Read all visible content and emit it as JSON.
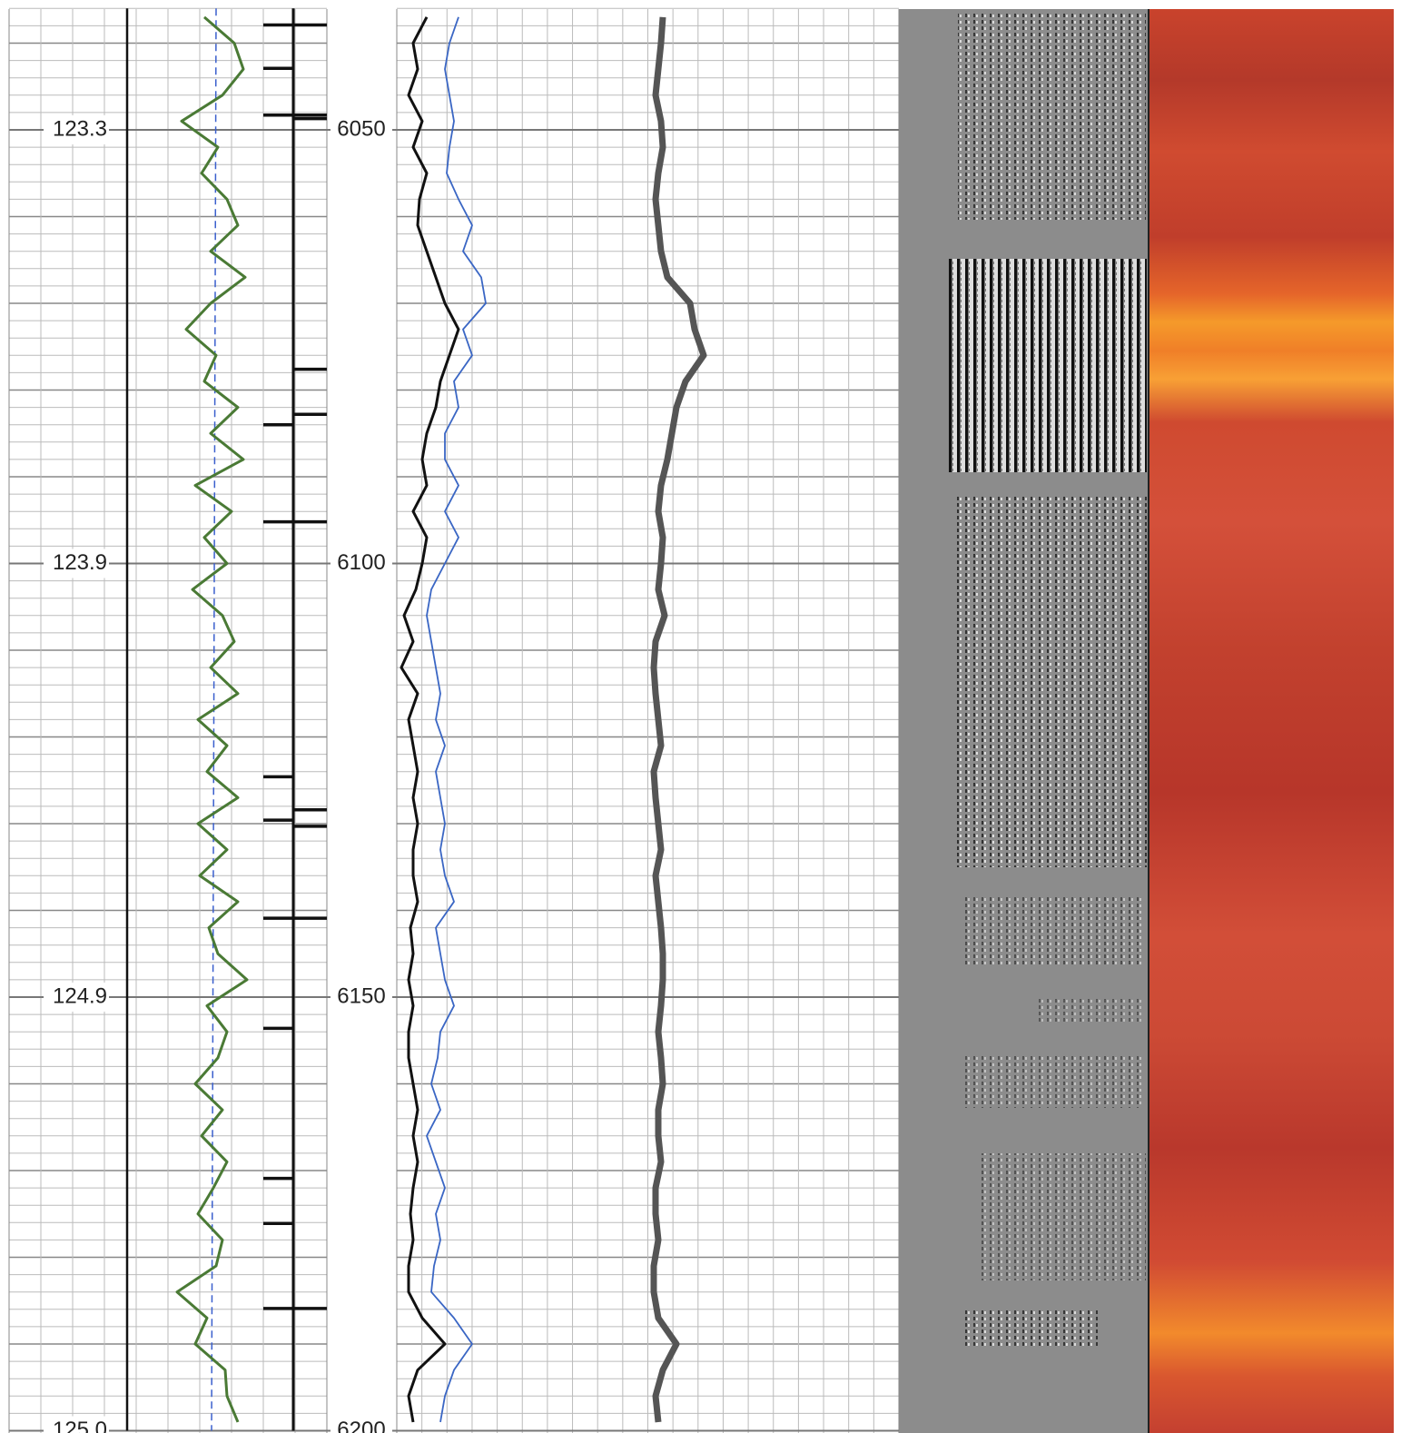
{
  "chart_data": {
    "type": "well-log",
    "ylim": [
      6036,
      6200
    ],
    "yticks": [
      6050,
      6100,
      6150,
      6200
    ],
    "time_ticks": [
      {
        "value": 6050,
        "label": "123.3"
      },
      {
        "value": 6100,
        "label": "123.9"
      },
      {
        "value": 6150,
        "label": "124.9"
      },
      {
        "value": 6200,
        "label": "125.0"
      }
    ],
    "grid_step": 2,
    "grid_major_step": 10,
    "x": [
      6037,
      6040,
      6043,
      6046,
      6049,
      6052,
      6055,
      6058,
      6061,
      6064,
      6067,
      6070,
      6073,
      6076,
      6079,
      6082,
      6085,
      6088,
      6091,
      6094,
      6097,
      6100,
      6103,
      6106,
      6109,
      6112,
      6115,
      6118,
      6121,
      6124,
      6127,
      6130,
      6133,
      6136,
      6139,
      6142,
      6145,
      6148,
      6151,
      6154,
      6157,
      6160,
      6163,
      6166,
      6169,
      6172,
      6175,
      6178,
      6181,
      6184,
      6187,
      6190,
      6193,
      6196,
      6199
    ],
    "tracks": [
      {
        "xlim": [
          0,
          350
        ],
        "x_divisions": 10,
        "series": [
          {
            "color": "#4a7a35",
            "width": 3,
            "values": [
              215,
              248,
              258,
              235,
              190,
              230,
              212,
              240,
              252,
              222,
              260,
              222,
              195,
              228,
              215,
              252,
              222,
              258,
              205,
              245,
              215,
              240,
              202,
              235,
              248,
              222,
              252,
              208,
              240,
              218,
              252,
              208,
              240,
              210,
              252,
              220,
              230,
              262,
              218,
              240,
              230,
              205,
              235,
              212,
              240,
              225,
              208,
              235,
              228,
              185,
              218,
              205,
              238,
              240,
              252
            ]
          }
        ],
        "reference_lines": [
          {
            "color": "#111111",
            "width": 2.5,
            "dash": false,
            "x": [
              6036,
              6200
            ],
            "values": [
              130,
              130
            ]
          },
          {
            "color": "#3a5fcd",
            "width": 1.5,
            "dash": true,
            "x": [
              6036,
              6200
            ],
            "values": [
              228,
              223
            ]
          },
          {
            "color": "#111111",
            "width": 3,
            "dash": false,
            "x": [
              6036,
              6200
            ],
            "values": [
              313,
              313
            ]
          }
        ],
        "events_left": [
          6037.9,
          6042.9,
          6048.3,
          6084.0,
          6095.2,
          6124.6,
          6129.6,
          6140.9,
          6153.6,
          6170.9,
          6176.1,
          6185.9
        ],
        "events_right": [
          6037.9,
          6048.3,
          6048.7,
          6077.6,
          6082.8,
          6095.2,
          6128.4,
          6130.3,
          6140.9,
          6185.9
        ],
        "events_span": [
          280,
          313,
          350
        ]
      },
      {
        "xlim": [
          0,
          553
        ],
        "x_divisions": 20,
        "series": [
          {
            "color": "#111111",
            "width": 3,
            "values": [
              33,
              18,
              23,
              13,
              28,
              18,
              33,
              25,
              23,
              33,
              43,
              53,
              68,
              58,
              48,
              43,
              33,
              28,
              33,
              18,
              33,
              28,
              21,
              8,
              18,
              5,
              23,
              13,
              18,
              23,
              18,
              23,
              18,
              18,
              23,
              15,
              18,
              13,
              18,
              13,
              13,
              18,
              23,
              18,
              23,
              18,
              15,
              18,
              13,
              13,
              28,
              53,
              23,
              13,
              18
            ]
          },
          {
            "color": "#3a66c4",
            "width": 1.8,
            "values": [
              68,
              58,
              53,
              58,
              63,
              58,
              55,
              68,
              83,
              73,
              93,
              98,
              73,
              83,
              63,
              68,
              53,
              53,
              68,
              53,
              68,
              53,
              38,
              33,
              38,
              43,
              48,
              43,
              53,
              43,
              48,
              53,
              48,
              53,
              63,
              43,
              48,
              53,
              63,
              48,
              45,
              38,
              48,
              33,
              43,
              53,
              43,
              48,
              41,
              38,
              63,
              83,
              63,
              53,
              48
            ]
          },
          {
            "color": "#555555",
            "width": 7,
            "values": [
              293,
              291,
              288,
              285,
              291,
              293,
              288,
              285,
              288,
              291,
              298,
              323,
              328,
              338,
              318,
              308,
              303,
              298,
              291,
              288,
              293,
              291,
              288,
              295,
              285,
              283,
              285,
              288,
              291,
              283,
              285,
              288,
              291,
              285,
              288,
              291,
              293,
              293,
              291,
              288,
              291,
              293,
              288,
              288,
              291,
              285,
              285,
              288,
              283,
              283,
              288,
              308,
              293,
              285,
              288
            ]
          }
        ]
      }
    ]
  }
}
